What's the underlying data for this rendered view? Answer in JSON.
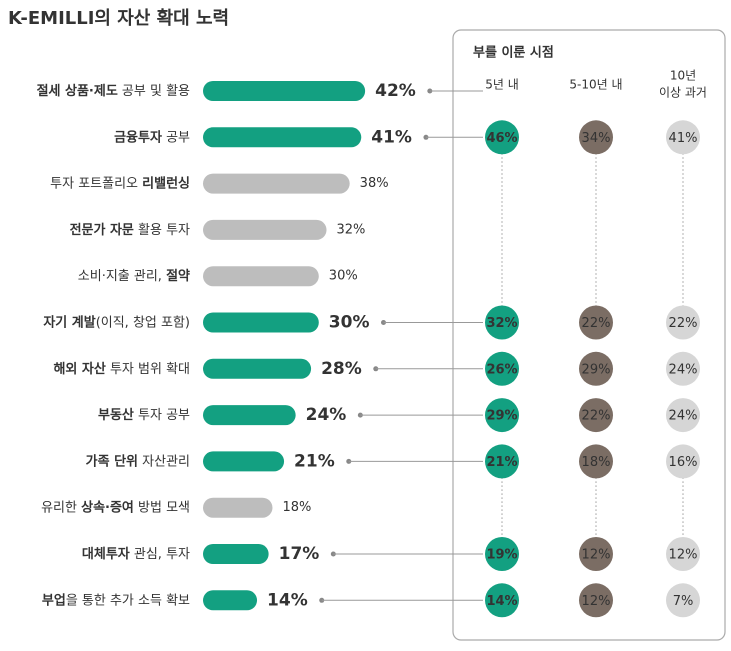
{
  "chart_data": {
    "type": "bar-dot-matrix",
    "title": "K-EMILLI의 자산 확대 노력",
    "categories": [
      [
        {
          "text": "절세 상품·제도",
          "bold": true
        },
        {
          "text": " 공부 및 활용",
          "bold": false
        }
      ],
      [
        {
          "text": "금융투자",
          "bold": true
        },
        {
          "text": " 공부",
          "bold": false
        }
      ],
      [
        {
          "text": "투자 포트폴리오 ",
          "bold": false
        },
        {
          "text": "리밸런싱",
          "bold": true
        }
      ],
      [
        {
          "text": "전문가 자문",
          "bold": true
        },
        {
          "text": " 활용 투자",
          "bold": false
        }
      ],
      [
        {
          "text": "소비·지출 관리, ",
          "bold": false
        },
        {
          "text": "절약",
          "bold": true
        }
      ],
      [
        {
          "text": "자기 계발",
          "bold": true
        },
        {
          "text": "(이직, 창업 포함)",
          "bold": false
        }
      ],
      [
        {
          "text": "해외 자산",
          "bold": true
        },
        {
          "text": " 투자 범위 확대",
          "bold": false
        }
      ],
      [
        {
          "text": "부동산",
          "bold": true
        },
        {
          "text": " 투자 공부",
          "bold": false
        }
      ],
      [
        {
          "text": "가족 단위",
          "bold": true
        },
        {
          "text": " 자산관리",
          "bold": false
        }
      ],
      [
        {
          "text": "유리한 ",
          "bold": false
        },
        {
          "text": "상속·증여",
          "bold": true
        },
        {
          "text": " 방법 모색",
          "bold": false
        }
      ],
      [
        {
          "text": "대체투자",
          "bold": true
        },
        {
          "text": " 관심, 투자",
          "bold": false
        }
      ],
      [
        {
          "text": "부업",
          "bold": true
        },
        {
          "text": "을 통한 추가 소득 확보",
          "bold": false
        }
      ]
    ],
    "values": [
      42,
      41,
      38,
      32,
      30,
      30,
      28,
      24,
      21,
      18,
      17,
      14
    ],
    "value_labels": [
      "42%",
      "41%",
      "38%",
      "32%",
      "30%",
      "30%",
      "28%",
      "24%",
      "21%",
      "18%",
      "17%",
      "14%"
    ],
    "highlight": [
      true,
      true,
      false,
      false,
      false,
      true,
      true,
      true,
      true,
      false,
      true,
      true
    ],
    "color": "#13a081",
    "muted_color": "#bdbdbd",
    "panel_title": "부를 이룬 시점",
    "series": [
      {
        "name": "5년 내",
        "color": "#13a081",
        "values": [
          null,
          46,
          null,
          null,
          null,
          32,
          26,
          29,
          21,
          null,
          19,
          14
        ],
        "value_labels": [
          null,
          "46%",
          null,
          null,
          null,
          "32%",
          "26%",
          "29%",
          "21%",
          null,
          "19%",
          "14%"
        ]
      },
      {
        "name": "5-10년 내",
        "color": "#7b6d64",
        "values": [
          null,
          34,
          null,
          null,
          null,
          22,
          29,
          22,
          18,
          null,
          12,
          12
        ],
        "value_labels": [
          null,
          "34%",
          null,
          null,
          null,
          "22%",
          "29%",
          "22%",
          "18%",
          null,
          "12%",
          "12%"
        ]
      },
      {
        "name": [
          "10년",
          "이상 과거"
        ],
        "color": "#d6d6d6",
        "values": [
          null,
          41,
          null,
          null,
          null,
          22,
          24,
          24,
          16,
          null,
          12,
          7
        ],
        "value_labels": [
          null,
          "41%",
          null,
          null,
          null,
          "22%",
          "24%",
          "24%",
          "16%",
          null,
          "12%",
          "7%"
        ]
      }
    ]
  }
}
